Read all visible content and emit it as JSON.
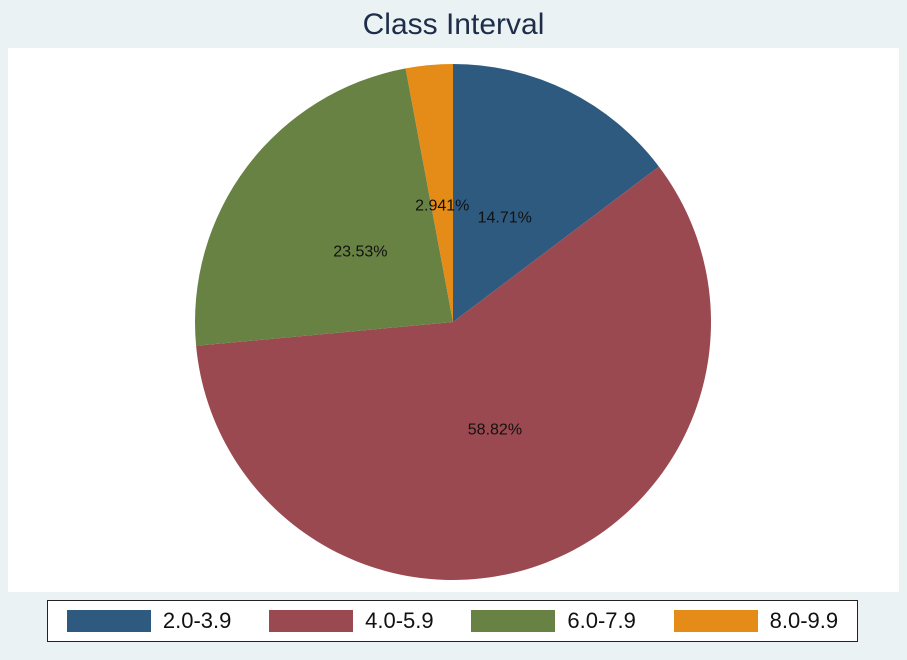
{
  "chart_data": {
    "type": "pie",
    "title": "Class Interval",
    "slices": [
      {
        "label": "2.0-3.9",
        "value": 14.71,
        "value_label": "14.71%",
        "color": "#2f5a80"
      },
      {
        "label": "4.0-5.9",
        "value": 58.82,
        "value_label": "58.82%",
        "color": "#9b4950"
      },
      {
        "label": "6.0-7.9",
        "value": 23.53,
        "value_label": "23.53%",
        "color": "#688243"
      },
      {
        "label": "8.0-9.9",
        "value": 2.941,
        "value_label": "2.941%",
        "color": "#e58b17"
      }
    ],
    "legend_position": "bottom",
    "start": "12 o'clock",
    "direction": "clockwise"
  }
}
